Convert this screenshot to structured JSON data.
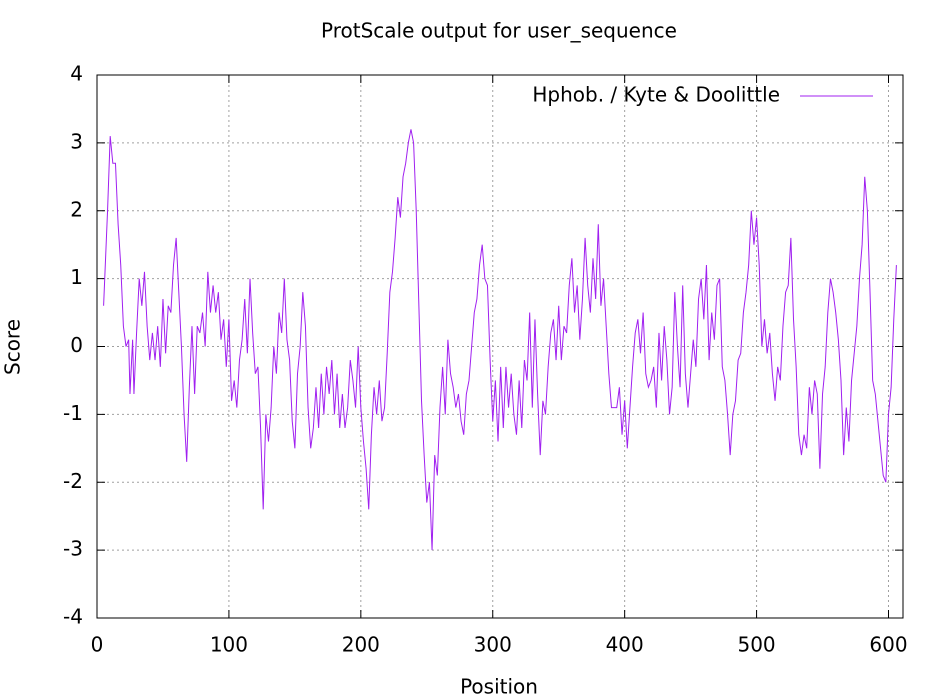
{
  "chart_data": {
    "type": "line",
    "title": "ProtScale output for user_sequence",
    "x_label": "Position",
    "y_label": "Score",
    "xlim": [
      0,
      611
    ],
    "ylim": [
      -4,
      4
    ],
    "xticks": [
      0,
      100,
      200,
      300,
      400,
      500,
      600
    ],
    "yticks": [
      -4,
      -3,
      -2,
      -1,
      0,
      1,
      2,
      3,
      4
    ],
    "grid": true,
    "legend": "top right",
    "series": [
      {
        "name": "Hphob. / Kyte & Doolittle",
        "color": "#a020f0",
        "x": [
          5,
          8,
          10,
          12,
          14,
          16,
          18,
          20,
          22,
          24,
          25,
          27,
          28,
          30,
          32,
          34,
          36,
          38,
          40,
          42,
          44,
          46,
          48,
          50,
          52,
          54,
          56,
          58,
          60,
          62,
          64,
          66,
          68,
          70,
          72,
          74,
          76,
          78,
          80,
          82,
          84,
          86,
          88,
          90,
          92,
          94,
          96,
          98,
          100,
          102,
          104,
          106,
          108,
          110,
          112,
          114,
          116,
          118,
          120,
          122,
          124,
          126,
          128,
          130,
          132,
          134,
          136,
          138,
          140,
          142,
          144,
          146,
          148,
          150,
          152,
          154,
          156,
          158,
          160,
          162,
          164,
          166,
          168,
          170,
          172,
          174,
          176,
          178,
          180,
          182,
          184,
          186,
          188,
          190,
          192,
          194,
          196,
          198,
          200,
          202,
          204,
          206,
          208,
          210,
          212,
          214,
          216,
          218,
          220,
          222,
          224,
          226,
          228,
          230,
          232,
          234,
          236,
          238,
          240,
          242,
          244,
          246,
          248,
          250,
          252,
          254,
          256,
          258,
          260,
          262,
          264,
          266,
          268,
          270,
          272,
          274,
          276,
          278,
          280,
          282,
          284,
          286,
          288,
          290,
          292,
          294,
          296,
          298,
          300,
          302,
          304,
          306,
          308,
          310,
          312,
          314,
          316,
          318,
          320,
          322,
          324,
          326,
          328,
          330,
          332,
          334,
          336,
          338,
          340,
          342,
          344,
          346,
          348,
          350,
          352,
          354,
          356,
          358,
          360,
          362,
          364,
          366,
          368,
          370,
          372,
          374,
          376,
          378,
          380,
          382,
          384,
          386,
          388,
          390,
          392,
          394,
          396,
          398,
          400,
          402,
          404,
          406,
          408,
          410,
          412,
          414,
          416,
          418,
          420,
          422,
          424,
          426,
          428,
          430,
          432,
          434,
          436,
          438,
          440,
          442,
          444,
          446,
          448,
          450,
          452,
          454,
          456,
          458,
          460,
          462,
          464,
          466,
          468,
          470,
          472,
          474,
          476,
          478,
          480,
          482,
          484,
          486,
          488,
          490,
          492,
          494,
          496,
          498,
          500,
          502,
          504,
          506,
          508,
          510,
          512,
          514,
          516,
          518,
          520,
          522,
          524,
          526,
          528,
          530,
          532,
          534,
          536,
          538,
          540,
          542,
          544,
          546,
          548,
          550,
          552,
          554,
          556,
          558,
          560,
          562,
          564,
          566,
          568,
          570,
          572,
          574,
          576,
          578,
          580,
          582,
          584,
          586,
          588,
          590,
          592,
          594,
          596,
          598,
          600,
          602,
          604,
          606
        ],
        "values": [
          0.6,
          2.0,
          3.1,
          2.7,
          2.7,
          1.8,
          1.2,
          0.3,
          0.0,
          0.1,
          -0.7,
          0.1,
          -0.7,
          0.2,
          1.0,
          0.6,
          1.1,
          0.3,
          -0.2,
          0.2,
          -0.2,
          0.3,
          -0.3,
          0.7,
          -0.1,
          0.6,
          0.5,
          1.2,
          1.6,
          0.8,
          0.0,
          -1.0,
          -1.7,
          -0.6,
          0.3,
          -0.7,
          0.3,
          0.2,
          0.5,
          0.0,
          1.1,
          0.5,
          0.9,
          0.5,
          0.8,
          0.1,
          0.4,
          -0.3,
          0.4,
          -0.8,
          -0.5,
          -0.9,
          -0.2,
          0.1,
          0.7,
          -0.1,
          1.0,
          0.2,
          -0.4,
          -0.3,
          -1.2,
          -2.4,
          -1.0,
          -1.4,
          -0.9,
          0.0,
          -0.4,
          0.5,
          0.2,
          1.0,
          0.1,
          -0.2,
          -1.1,
          -1.5,
          -0.4,
          0.0,
          0.8,
          0.3,
          -0.9,
          -1.5,
          -1.2,
          -0.6,
          -1.2,
          -0.4,
          -1.0,
          -0.3,
          -0.7,
          -0.2,
          -1.0,
          -0.4,
          -1.2,
          -0.7,
          -1.2,
          -0.9,
          -0.2,
          -0.5,
          -0.9,
          0.0,
          -0.9,
          -1.4,
          -1.8,
          -2.4,
          -1.3,
          -0.6,
          -1.0,
          -0.5,
          -1.1,
          -0.9,
          -0.1,
          0.8,
          1.1,
          1.6,
          2.2,
          1.9,
          2.5,
          2.7,
          3.0,
          3.2,
          3.0,
          2.0,
          0.6,
          -0.8,
          -1.6,
          -2.3,
          -2.0,
          -3.0,
          -1.6,
          -1.9,
          -0.9,
          -0.3,
          -1.0,
          0.1,
          -0.4,
          -0.6,
          -0.9,
          -0.7,
          -1.1,
          -1.3,
          -0.7,
          -0.5,
          0.0,
          0.5,
          0.7,
          1.2,
          1.5,
          1.0,
          0.9,
          -0.2,
          -1.1,
          -0.5,
          -1.4,
          -0.3,
          -1.2,
          -0.3,
          -0.9,
          -0.4,
          -1.0,
          -1.3,
          -0.5,
          -1.2,
          -0.2,
          -0.5,
          0.5,
          -0.9,
          0.4,
          -0.7,
          -1.6,
          -0.8,
          -1.0,
          -0.3,
          0.2,
          0.4,
          -0.2,
          0.6,
          -0.2,
          0.3,
          0.2,
          0.9,
          1.3,
          0.5,
          0.9,
          0.1,
          0.7,
          1.6,
          0.9,
          0.5,
          1.3,
          0.7,
          1.8,
          0.6,
          1.0,
          0.3,
          -0.4,
          -0.9,
          -0.9,
          -0.9,
          -0.6,
          -1.3,
          -0.8,
          -1.5,
          -0.9,
          -0.3,
          0.2,
          0.4,
          -0.1,
          0.5,
          -0.4,
          -0.6,
          -0.5,
          -0.3,
          -0.9,
          0.2,
          -0.5,
          0.3,
          -0.2,
          -1.0,
          -0.6,
          0.8,
          0.0,
          -0.6,
          0.9,
          -0.4,
          -0.9,
          -0.4,
          0.1,
          -0.3,
          0.7,
          1.0,
          0.4,
          1.2,
          -0.2,
          0.5,
          0.1,
          0.9,
          1.0,
          -0.3,
          -0.5,
          -1.0,
          -1.6,
          -1.0,
          -0.8,
          -0.2,
          -0.1,
          0.5,
          0.8,
          1.2,
          2.0,
          1.5,
          1.9,
          1.2,
          0.0,
          0.4,
          -0.1,
          0.2,
          -0.4,
          -0.8,
          -0.3,
          -0.5,
          0.3,
          0.8,
          0.9,
          1.6,
          0.4,
          -0.3,
          -1.3,
          -1.6,
          -1.3,
          -1.5,
          -0.6,
          -1.0,
          -0.5,
          -0.7,
          -1.8,
          -0.7,
          -0.3,
          0.5,
          1.0,
          0.8,
          0.5,
          0.1,
          -0.5,
          -1.6,
          -0.9,
          -1.4,
          -0.5,
          -0.1,
          0.3,
          1.0,
          1.5,
          2.5,
          2.0,
          0.8,
          -0.5,
          -0.7,
          -1.1,
          -1.5,
          -1.9,
          -2.0,
          -1.0,
          -0.6,
          0.4,
          1.2
        ]
      }
    ]
  }
}
